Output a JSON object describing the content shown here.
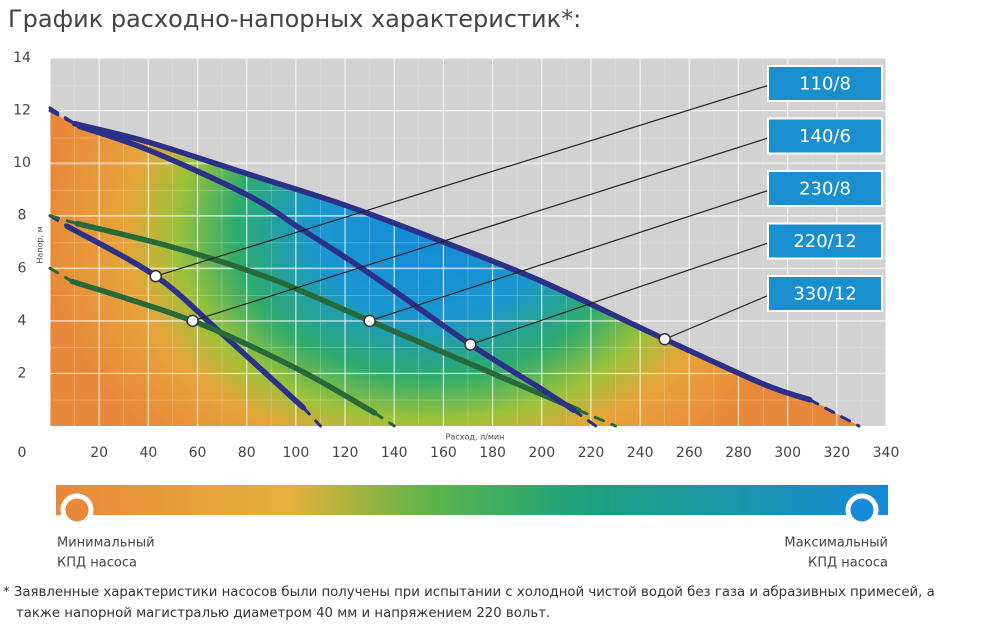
{
  "chart_data": {
    "type": "line",
    "title": "График расходно-напорных характеристик*:",
    "x_label": "Расход, л/мин",
    "y_label": "Напор, м",
    "xlim": [
      0,
      340
    ],
    "ylim": [
      0,
      14
    ],
    "xticks": [
      0,
      20,
      40,
      60,
      80,
      100,
      120,
      140,
      160,
      180,
      200,
      220,
      240,
      260,
      280,
      300,
      320,
      340
    ],
    "yticks": [
      2,
      4,
      6,
      8,
      10,
      12,
      14
    ],
    "grid": true,
    "series": [
      {
        "name": "110/8",
        "color": "#2b3088",
        "x": [
          0,
          7,
          43,
          70,
          103,
          110
        ],
        "values": [
          8,
          7.6,
          5.7,
          3.5,
          0.7,
          0
        ],
        "marker": {
          "x": 43,
          "y": 5.7
        }
      },
      {
        "name": "140/6",
        "color": "#27693a",
        "x": [
          0,
          9,
          58,
          100,
          132,
          140
        ],
        "values": [
          6,
          5.5,
          4.0,
          2.2,
          0.5,
          0
        ],
        "marker": {
          "x": 58,
          "y": 4.0
        }
      },
      {
        "name": "230/8",
        "color": "#27693a",
        "x": [
          0,
          11,
          50,
          90,
          130,
          170,
          215,
          230
        ],
        "values": [
          8,
          7.7,
          6.8,
          5.6,
          4.0,
          2.4,
          0.6,
          0
        ],
        "marker": {
          "x": 130,
          "y": 4.0
        }
      },
      {
        "name": "220/12",
        "color": "#2b3088",
        "x": [
          0,
          12,
          40,
          80,
          102,
          130,
          171,
          200,
          213,
          222
        ],
        "values": [
          12,
          11.4,
          10.5,
          8.8,
          7.5,
          5.8,
          3.1,
          1.4,
          0.6,
          0
        ],
        "marker": {
          "x": 171,
          "y": 3.1
        }
      },
      {
        "name": "330/12",
        "color": "#2b3088",
        "x": [
          0,
          10,
          40,
          80,
          120,
          160,
          200,
          250,
          290,
          309,
          329
        ],
        "values": [
          12.1,
          11.5,
          10.8,
          9.6,
          8.4,
          7.0,
          5.5,
          3.3,
          1.6,
          1.0,
          0
        ],
        "marker": {
          "x": 250,
          "y": 3.3
        }
      }
    ],
    "efficiency_legend": {
      "min": [
        "Минимальный",
        "КПД насоса"
      ],
      "max": [
        "Максимальный",
        "КПД насоса"
      ]
    },
    "footnote": [
      "* Заявленные характеристики насосов были получены при испытании с холодной чистой водой без газа и абразивных примесей, а",
      "также напорной магистралью диаметром 40 мм и напряжением 220 вольт."
    ]
  }
}
